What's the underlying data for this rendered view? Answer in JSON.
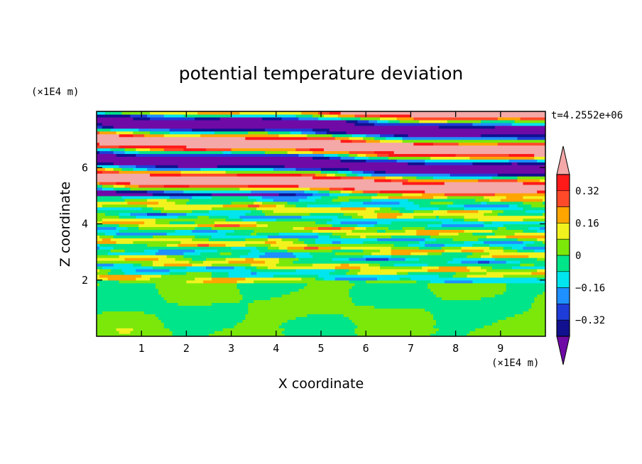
{
  "chart_data": {
    "type": "heatmap",
    "title": "potential temperature deviation",
    "xlabel": "X coordinate",
    "ylabel": "Z coordinate",
    "x_unit": "(×1E4 m)",
    "y_unit": "(×1E4 m)",
    "time_label": "t=4.2552e+06",
    "xlim": [
      0,
      10
    ],
    "ylim": [
      0,
      8
    ],
    "x_ticks": [
      1,
      2,
      3,
      4,
      5,
      6,
      7,
      8,
      9
    ],
    "y_ticks": [
      2,
      4,
      6
    ],
    "x_tick_labels": [
      "1",
      "2",
      "3",
      "4",
      "5",
      "6",
      "7",
      "8",
      "9"
    ],
    "y_tick_labels": [
      "2",
      "4",
      "6"
    ],
    "colorbar": {
      "levels": [
        -0.4,
        -0.32,
        -0.24,
        -0.16,
        -0.08,
        0,
        0.08,
        0.16,
        0.24,
        0.32,
        0.4
      ],
      "colors": [
        "#6f0aa6",
        "#11118f",
        "#1e3cd8",
        "#1e90ff",
        "#00e5ee",
        "#00e48a",
        "#7be80a",
        "#f2f21e",
        "#ffa500",
        "#ff4a2a",
        "#ff1a1a",
        "#f4a8a8"
      ],
      "labeled_values": [
        "0.32",
        "0.16",
        "0",
        "−0.16",
        "−0.32"
      ],
      "extend": "both"
    },
    "regions": [
      {
        "zmin": 0,
        "zmax": 2.0,
        "description": "mostly near-zero deviation (green/lime)"
      },
      {
        "zmin": 2.0,
        "zmax": 5.0,
        "description": "multi-level layered bands"
      },
      {
        "zmin": 5.0,
        "zmax": 8.0,
        "description": "alternating strong bands (purple / pink)"
      }
    ]
  }
}
